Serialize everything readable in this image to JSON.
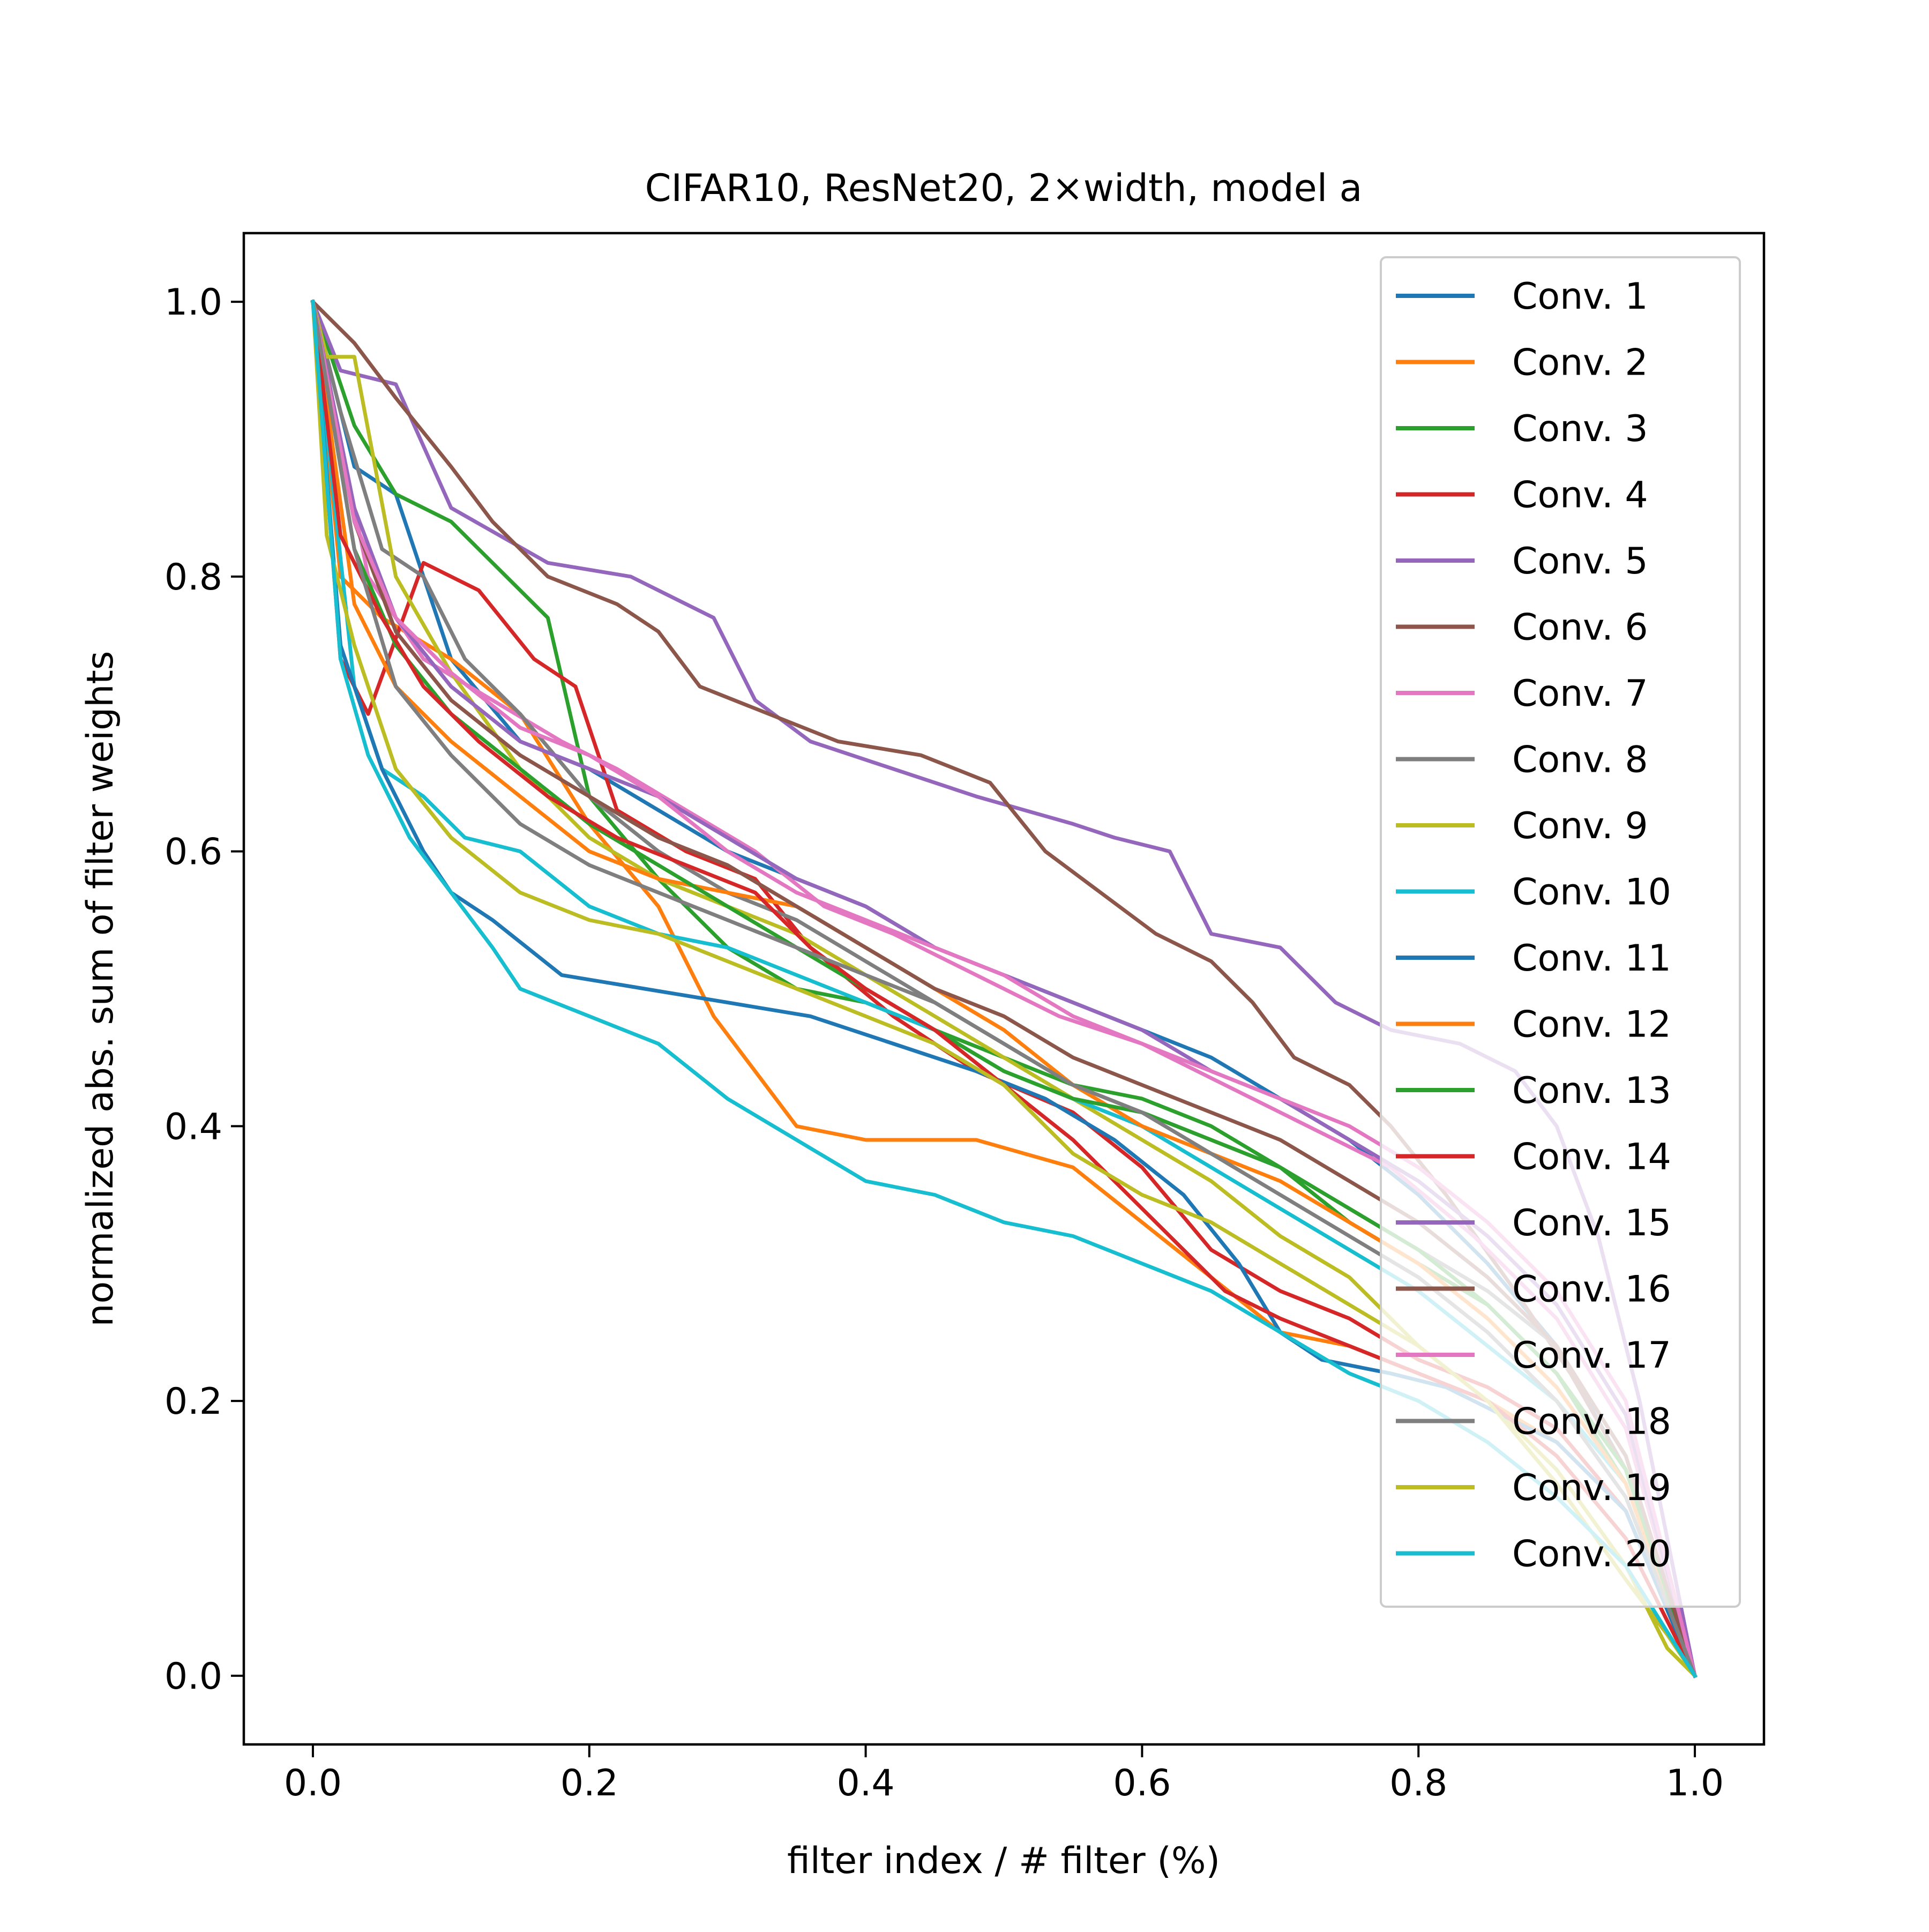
{
  "chart_data": {
    "type": "line",
    "title": "CIFAR10, ResNet20, 2×width, model a",
    "xlabel": "filter index / # filter (%)",
    "ylabel": "normalized abs. sum of filter weights",
    "xlim": [
      -0.05,
      1.05
    ],
    "ylim": [
      -0.05,
      1.05
    ],
    "xticks": [
      0.0,
      0.2,
      0.4,
      0.6,
      0.8,
      1.0
    ],
    "xtick_labels": [
      "0.0",
      "0.2",
      "0.4",
      "0.6",
      "0.8",
      "1.0"
    ],
    "yticks": [
      0.0,
      0.2,
      0.4,
      0.6,
      0.8,
      1.0
    ],
    "ytick_labels": [
      "0.0",
      "0.2",
      "0.4",
      "0.6",
      "0.8",
      "1.0"
    ],
    "grid": false,
    "legend_position": "top-right",
    "series": [
      {
        "name": "Conv. 1",
        "color": "#1f77b4",
        "x": [
          0,
          0.03,
          0.06,
          0.1,
          0.15,
          0.2,
          0.25,
          0.3,
          0.35,
          0.4,
          0.45,
          0.5,
          0.55,
          0.6,
          0.65,
          0.7,
          0.75,
          0.8,
          0.85,
          0.9,
          0.95,
          1.0
        ],
        "y": [
          1.0,
          0.88,
          0.86,
          0.74,
          0.68,
          0.66,
          0.63,
          0.6,
          0.58,
          0.56,
          0.53,
          0.51,
          0.49,
          0.47,
          0.45,
          0.42,
          0.39,
          0.35,
          0.3,
          0.24,
          0.15,
          0.0
        ]
      },
      {
        "name": "Conv. 2",
        "color": "#ff7f0e",
        "x": [
          0,
          0.02,
          0.05,
          0.1,
          0.15,
          0.2,
          0.25,
          0.29,
          0.35,
          0.4,
          0.48,
          0.55,
          0.6,
          0.65,
          0.7,
          0.75,
          0.8,
          0.85,
          0.9,
          0.95,
          1.0
        ],
        "y": [
          1.0,
          0.8,
          0.77,
          0.74,
          0.7,
          0.62,
          0.56,
          0.48,
          0.4,
          0.39,
          0.39,
          0.37,
          0.33,
          0.29,
          0.25,
          0.24,
          0.22,
          0.2,
          0.17,
          0.12,
          0.0
        ]
      },
      {
        "name": "Conv. 3",
        "color": "#2ca02c",
        "x": [
          0,
          0.03,
          0.06,
          0.1,
          0.14,
          0.17,
          0.2,
          0.25,
          0.3,
          0.35,
          0.4,
          0.45,
          0.5,
          0.55,
          0.6,
          0.65,
          0.7,
          0.75,
          0.8,
          0.85,
          0.9,
          0.95,
          1.0
        ],
        "y": [
          1.0,
          0.91,
          0.86,
          0.84,
          0.8,
          0.77,
          0.64,
          0.58,
          0.53,
          0.5,
          0.49,
          0.47,
          0.45,
          0.43,
          0.42,
          0.4,
          0.37,
          0.33,
          0.3,
          0.27,
          0.22,
          0.14,
          0.0
        ]
      },
      {
        "name": "Conv. 4",
        "color": "#d62728",
        "x": [
          0,
          0.02,
          0.04,
          0.08,
          0.12,
          0.16,
          0.19,
          0.22,
          0.27,
          0.32,
          0.36,
          0.42,
          0.48,
          0.55,
          0.6,
          0.65,
          0.7,
          0.75,
          0.8,
          0.85,
          0.9,
          0.95,
          1.0
        ],
        "y": [
          1.0,
          0.74,
          0.7,
          0.81,
          0.79,
          0.74,
          0.72,
          0.63,
          0.6,
          0.58,
          0.53,
          0.48,
          0.44,
          0.41,
          0.37,
          0.31,
          0.28,
          0.26,
          0.23,
          0.21,
          0.18,
          0.12,
          0.0
        ]
      },
      {
        "name": "Conv. 5",
        "color": "#9467bd",
        "x": [
          0,
          0.02,
          0.06,
          0.1,
          0.17,
          0.23,
          0.29,
          0.32,
          0.36,
          0.42,
          0.48,
          0.55,
          0.58,
          0.62,
          0.65,
          0.7,
          0.74,
          0.78,
          0.83,
          0.87,
          0.9,
          0.93,
          0.96,
          1.0
        ],
        "y": [
          1.0,
          0.95,
          0.94,
          0.85,
          0.81,
          0.8,
          0.77,
          0.71,
          0.68,
          0.66,
          0.64,
          0.62,
          0.61,
          0.6,
          0.54,
          0.53,
          0.49,
          0.47,
          0.46,
          0.44,
          0.4,
          0.32,
          0.2,
          0.0
        ]
      },
      {
        "name": "Conv. 6",
        "color": "#8c564b",
        "x": [
          0,
          0.03,
          0.06,
          0.1,
          0.13,
          0.17,
          0.22,
          0.25,
          0.28,
          0.33,
          0.38,
          0.44,
          0.49,
          0.53,
          0.57,
          0.61,
          0.65,
          0.68,
          0.71,
          0.75,
          0.78,
          0.82,
          0.87,
          0.91,
          0.95,
          1.0
        ],
        "y": [
          1.0,
          0.97,
          0.93,
          0.88,
          0.84,
          0.8,
          0.78,
          0.76,
          0.72,
          0.7,
          0.68,
          0.67,
          0.65,
          0.6,
          0.57,
          0.54,
          0.52,
          0.49,
          0.45,
          0.43,
          0.4,
          0.35,
          0.28,
          0.22,
          0.15,
          0.0
        ]
      },
      {
        "name": "Conv. 7",
        "color": "#e377c2",
        "x": [
          0,
          0.04,
          0.08,
          0.13,
          0.18,
          0.22,
          0.27,
          0.32,
          0.37,
          0.42,
          0.48,
          0.54,
          0.6,
          0.66,
          0.72,
          0.78,
          0.84,
          0.9,
          0.95,
          1.0
        ],
        "y": [
          1.0,
          0.8,
          0.74,
          0.71,
          0.68,
          0.66,
          0.63,
          0.6,
          0.56,
          0.54,
          0.51,
          0.48,
          0.46,
          0.43,
          0.4,
          0.37,
          0.32,
          0.26,
          0.18,
          0.0
        ]
      },
      {
        "name": "Conv. 8",
        "color": "#7f7f7f",
        "x": [
          0,
          0.02,
          0.05,
          0.08,
          0.11,
          0.15,
          0.2,
          0.25,
          0.3,
          0.35,
          0.4,
          0.45,
          0.5,
          0.55,
          0.6,
          0.65,
          0.7,
          0.75,
          0.8,
          0.85,
          0.9,
          0.95,
          1.0
        ],
        "y": [
          1.0,
          0.92,
          0.82,
          0.8,
          0.74,
          0.7,
          0.64,
          0.6,
          0.57,
          0.55,
          0.52,
          0.49,
          0.46,
          0.43,
          0.41,
          0.39,
          0.37,
          0.34,
          0.31,
          0.28,
          0.24,
          0.16,
          0.0
        ]
      },
      {
        "name": "Conv. 9",
        "color": "#bcbd22",
        "x": [
          0,
          0.01,
          0.03,
          0.06,
          0.1,
          0.15,
          0.2,
          0.25,
          0.3,
          0.35,
          0.4,
          0.45,
          0.5,
          0.55,
          0.6,
          0.65,
          0.7,
          0.75,
          0.77,
          0.8,
          0.85,
          0.9,
          0.95,
          0.98,
          1.0
        ],
        "y": [
          1.0,
          0.96,
          0.96,
          0.8,
          0.73,
          0.66,
          0.61,
          0.58,
          0.56,
          0.54,
          0.51,
          0.48,
          0.45,
          0.42,
          0.39,
          0.36,
          0.32,
          0.29,
          0.27,
          0.24,
          0.2,
          0.15,
          0.08,
          0.02,
          0.0
        ]
      },
      {
        "name": "Conv. 10",
        "color": "#17becf",
        "x": [
          0,
          0.03,
          0.05,
          0.08,
          0.11,
          0.15,
          0.2,
          0.25,
          0.3,
          0.35,
          0.4,
          0.45,
          0.5,
          0.55,
          0.6,
          0.65,
          0.7,
          0.75,
          0.8,
          0.85,
          0.9,
          0.95,
          1.0
        ],
        "y": [
          1.0,
          0.72,
          0.66,
          0.64,
          0.61,
          0.6,
          0.56,
          0.54,
          0.53,
          0.51,
          0.49,
          0.47,
          0.44,
          0.42,
          0.4,
          0.37,
          0.34,
          0.31,
          0.28,
          0.24,
          0.2,
          0.14,
          0.0
        ]
      },
      {
        "name": "Conv. 11",
        "color": "#1f77b4",
        "x": [
          0,
          0.02,
          0.05,
          0.08,
          0.1,
          0.13,
          0.18,
          0.24,
          0.3,
          0.36,
          0.42,
          0.48,
          0.53,
          0.58,
          0.63,
          0.67,
          0.7,
          0.73,
          0.78,
          0.82,
          0.86,
          0.9,
          0.95,
          1.0
        ],
        "y": [
          1.0,
          0.75,
          0.66,
          0.6,
          0.57,
          0.55,
          0.51,
          0.5,
          0.49,
          0.48,
          0.46,
          0.44,
          0.42,
          0.39,
          0.35,
          0.3,
          0.25,
          0.23,
          0.22,
          0.21,
          0.19,
          0.17,
          0.12,
          0.0
        ]
      },
      {
        "name": "Conv. 12",
        "color": "#ff7f0e",
        "x": [
          0,
          0.03,
          0.06,
          0.1,
          0.15,
          0.2,
          0.25,
          0.3,
          0.35,
          0.4,
          0.45,
          0.5,
          0.55,
          0.6,
          0.65,
          0.7,
          0.75,
          0.8,
          0.85,
          0.9,
          0.95,
          1.0
        ],
        "y": [
          1.0,
          0.78,
          0.72,
          0.68,
          0.64,
          0.6,
          0.58,
          0.57,
          0.56,
          0.53,
          0.5,
          0.47,
          0.43,
          0.4,
          0.38,
          0.36,
          0.33,
          0.3,
          0.26,
          0.21,
          0.14,
          0.0
        ]
      },
      {
        "name": "Conv. 13",
        "color": "#2ca02c",
        "x": [
          0,
          0.03,
          0.06,
          0.1,
          0.15,
          0.2,
          0.25,
          0.3,
          0.35,
          0.4,
          0.45,
          0.5,
          0.55,
          0.6,
          0.65,
          0.7,
          0.75,
          0.8,
          0.85,
          0.9,
          0.95,
          1.0
        ],
        "y": [
          1.0,
          0.82,
          0.75,
          0.7,
          0.66,
          0.62,
          0.59,
          0.56,
          0.53,
          0.5,
          0.47,
          0.44,
          0.42,
          0.41,
          0.39,
          0.37,
          0.34,
          0.31,
          0.27,
          0.22,
          0.15,
          0.0
        ]
      },
      {
        "name": "Conv. 14",
        "color": "#d62728",
        "x": [
          0,
          0.02,
          0.05,
          0.08,
          0.12,
          0.17,
          0.22,
          0.27,
          0.32,
          0.36,
          0.4,
          0.45,
          0.5,
          0.55,
          0.6,
          0.63,
          0.66,
          0.7,
          0.75,
          0.8,
          0.85,
          0.9,
          0.95,
          1.0
        ],
        "y": [
          1.0,
          0.83,
          0.77,
          0.72,
          0.68,
          0.64,
          0.61,
          0.59,
          0.57,
          0.53,
          0.5,
          0.47,
          0.43,
          0.39,
          0.34,
          0.31,
          0.28,
          0.26,
          0.24,
          0.22,
          0.2,
          0.16,
          0.1,
          0.0
        ]
      },
      {
        "name": "Conv. 15",
        "color": "#9467bd",
        "x": [
          0,
          0.03,
          0.06,
          0.1,
          0.15,
          0.2,
          0.25,
          0.3,
          0.35,
          0.4,
          0.45,
          0.5,
          0.55,
          0.6,
          0.65,
          0.7,
          0.75,
          0.8,
          0.85,
          0.9,
          0.95,
          1.0
        ],
        "y": [
          1.0,
          0.85,
          0.77,
          0.72,
          0.68,
          0.66,
          0.64,
          0.61,
          0.58,
          0.56,
          0.53,
          0.51,
          0.49,
          0.47,
          0.44,
          0.42,
          0.39,
          0.36,
          0.32,
          0.27,
          0.19,
          0.0
        ]
      },
      {
        "name": "Conv. 16",
        "color": "#8c564b",
        "x": [
          0,
          0.03,
          0.06,
          0.1,
          0.15,
          0.2,
          0.25,
          0.3,
          0.35,
          0.4,
          0.45,
          0.5,
          0.55,
          0.6,
          0.65,
          0.7,
          0.75,
          0.8,
          0.85,
          0.9,
          0.95,
          1.0
        ],
        "y": [
          1.0,
          0.84,
          0.76,
          0.71,
          0.67,
          0.64,
          0.61,
          0.59,
          0.56,
          0.53,
          0.5,
          0.48,
          0.45,
          0.43,
          0.41,
          0.39,
          0.36,
          0.33,
          0.29,
          0.24,
          0.16,
          0.0
        ]
      },
      {
        "name": "Conv. 17",
        "color": "#e377c2",
        "x": [
          0,
          0.03,
          0.06,
          0.1,
          0.15,
          0.2,
          0.25,
          0.3,
          0.35,
          0.4,
          0.45,
          0.5,
          0.55,
          0.6,
          0.65,
          0.7,
          0.75,
          0.8,
          0.85,
          0.9,
          0.95,
          1.0
        ],
        "y": [
          1.0,
          0.84,
          0.77,
          0.73,
          0.69,
          0.67,
          0.64,
          0.6,
          0.57,
          0.55,
          0.53,
          0.51,
          0.48,
          0.46,
          0.44,
          0.42,
          0.4,
          0.37,
          0.33,
          0.28,
          0.2,
          0.0
        ]
      },
      {
        "name": "Conv. 18",
        "color": "#7f7f7f",
        "x": [
          0,
          0.03,
          0.06,
          0.1,
          0.15,
          0.2,
          0.25,
          0.3,
          0.35,
          0.4,
          0.45,
          0.5,
          0.55,
          0.6,
          0.65,
          0.7,
          0.75,
          0.8,
          0.85,
          0.9,
          0.95,
          1.0
        ],
        "y": [
          1.0,
          0.82,
          0.72,
          0.67,
          0.62,
          0.59,
          0.57,
          0.55,
          0.53,
          0.51,
          0.49,
          0.46,
          0.43,
          0.41,
          0.38,
          0.35,
          0.32,
          0.29,
          0.25,
          0.2,
          0.13,
          0.0
        ]
      },
      {
        "name": "Conv. 19",
        "color": "#bcbd22",
        "x": [
          0,
          0.01,
          0.03,
          0.06,
          0.1,
          0.15,
          0.2,
          0.25,
          0.3,
          0.35,
          0.4,
          0.45,
          0.5,
          0.55,
          0.6,
          0.65,
          0.7,
          0.75,
          0.8,
          0.85,
          0.9,
          0.95,
          0.98,
          1.0
        ],
        "y": [
          1.0,
          0.83,
          0.75,
          0.66,
          0.61,
          0.57,
          0.55,
          0.54,
          0.52,
          0.5,
          0.48,
          0.46,
          0.43,
          0.38,
          0.35,
          0.33,
          0.3,
          0.27,
          0.24,
          0.2,
          0.14,
          0.07,
          0.03,
          0.0
        ]
      },
      {
        "name": "Conv. 20",
        "color": "#17becf",
        "x": [
          0,
          0.02,
          0.04,
          0.07,
          0.1,
          0.13,
          0.15,
          0.2,
          0.25,
          0.3,
          0.35,
          0.4,
          0.45,
          0.5,
          0.55,
          0.6,
          0.65,
          0.7,
          0.75,
          0.8,
          0.85,
          0.9,
          0.95,
          1.0
        ],
        "y": [
          1.0,
          0.74,
          0.67,
          0.61,
          0.57,
          0.53,
          0.5,
          0.48,
          0.46,
          0.42,
          0.39,
          0.36,
          0.35,
          0.33,
          0.32,
          0.3,
          0.28,
          0.25,
          0.22,
          0.2,
          0.17,
          0.13,
          0.08,
          0.0
        ]
      }
    ]
  }
}
